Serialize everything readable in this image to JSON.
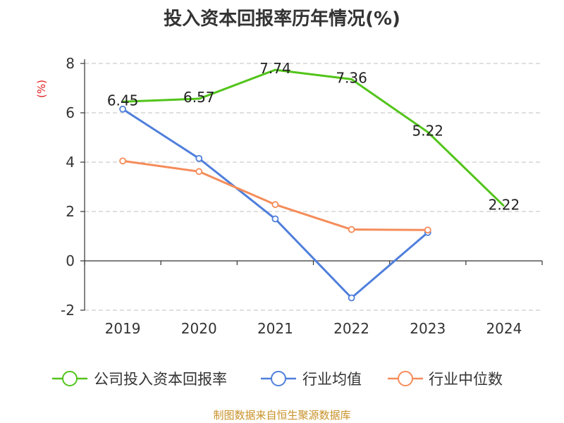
{
  "title": "投入资本回报率历年情况(%)",
  "source": "制图数据来自恒生聚源数据库",
  "unit": "(%)",
  "chart_data": {
    "type": "line",
    "title": "投入资本回报率历年情况(%)",
    "xlabel": "",
    "ylabel": "(%)",
    "ylim": [
      -2,
      8
    ],
    "yticks": [
      -2,
      0,
      2,
      4,
      6,
      8
    ],
    "grid": true,
    "legend_position": "bottom",
    "categories": [
      "2019",
      "2020",
      "2021",
      "2022",
      "2023",
      "2024"
    ],
    "series": [
      {
        "name": "公司投入资本回报率",
        "color": "#52c41a",
        "values": [
          6.45,
          6.57,
          7.74,
          7.36,
          5.22,
          2.22
        ],
        "labels": true
      },
      {
        "name": "行业均值",
        "color": "#4f7fdc",
        "values": [
          6.15,
          4.15,
          1.7,
          -1.5,
          1.15,
          null
        ],
        "labels": false
      },
      {
        "name": "行业中位数",
        "color": "#f58c5a",
        "values": [
          4.05,
          3.62,
          2.28,
          1.27,
          1.25,
          null
        ],
        "labels": false
      }
    ]
  }
}
